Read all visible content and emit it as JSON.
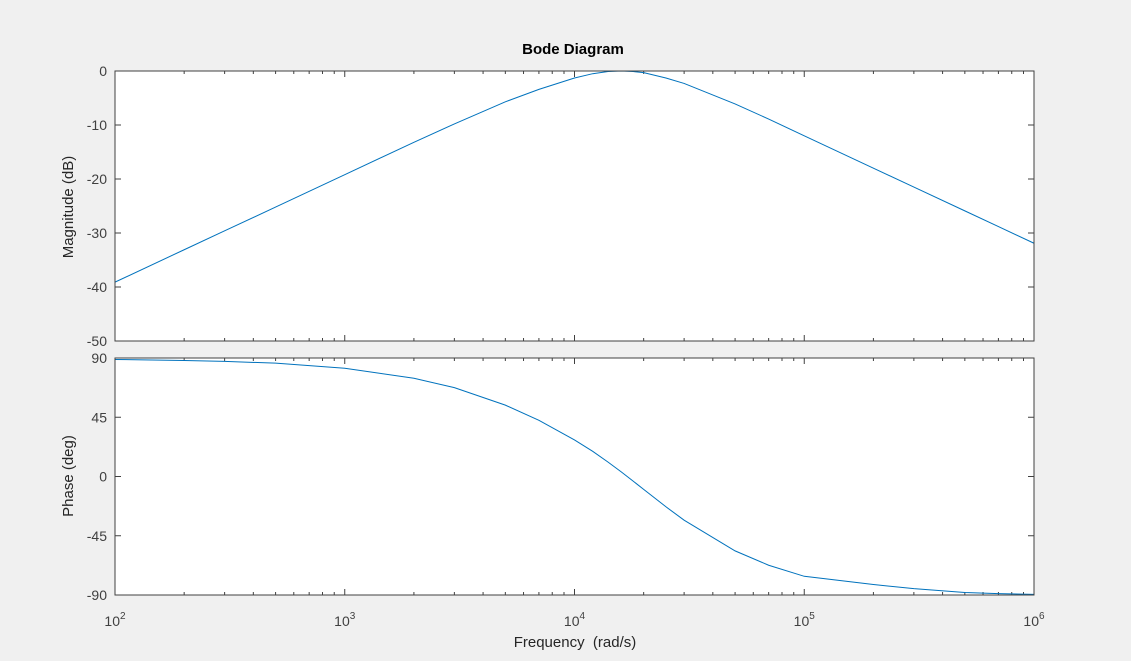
{
  "figure": {
    "background_color": "#f0f0f0",
    "axes_color": "#ffffff",
    "axis_line_color": "#404040",
    "tick_label_color": "#404040",
    "line_color": "#0072bd"
  },
  "chart_data": [
    {
      "type": "line",
      "title": "Bode Diagram",
      "ylabel": "Magnitude (dB)",
      "xlabel": "",
      "xscale": "log",
      "xlim": [
        100,
        1000000
      ],
      "ylim": [
        -50,
        0
      ],
      "yticks": [
        0,
        -10,
        -20,
        -30,
        -40,
        -50
      ],
      "grid": false,
      "series": [
        {
          "x": [
            100,
            200,
            300,
            500,
            1000,
            2000,
            3000,
            5000,
            7000,
            10000,
            12000,
            14000,
            16000,
            18000,
            20000,
            25000,
            30000,
            50000,
            70000,
            100000,
            200000,
            300000,
            500000,
            700000,
            1000000
          ],
          "values": [
            -39.1,
            -33.1,
            -29.6,
            -25.2,
            -19.2,
            -13.2,
            -9.8,
            -5.7,
            -3.4,
            -1.3,
            -0.5,
            -0.1,
            0,
            -0.1,
            -0.3,
            -1.3,
            -2.3,
            -6.1,
            -8.9,
            -12.0,
            -18.0,
            -21.5,
            -25.9,
            -28.8,
            -31.9
          ]
        }
      ]
    },
    {
      "type": "line",
      "xlabel": "Frequency  (rad/s)",
      "ylabel": "Phase (deg)",
      "xscale": "log",
      "xlim": [
        100,
        1000000
      ],
      "ylim": [
        -90,
        90
      ],
      "yticks": [
        90,
        45,
        0,
        -45,
        -90
      ],
      "xtick_labels": [
        "10",
        "10",
        "10",
        "10",
        "10"
      ],
      "xtick_exponents": [
        "2",
        "3",
        "4",
        "5",
        "6"
      ],
      "grid": false,
      "series": [
        {
          "x": [
            100,
            200,
            300,
            500,
            1000,
            2000,
            3000,
            5000,
            7000,
            10000,
            12000,
            14000,
            16000,
            18000,
            20000,
            25000,
            30000,
            50000,
            70000,
            100000,
            200000,
            300000,
            500000,
            700000,
            1000000
          ],
          "values": [
            88.9,
            88.1,
            87.4,
            86.1,
            82.2,
            74.6,
            67.5,
            54.2,
            42.7,
            27.8,
            19.1,
            10.9,
            3.4,
            -3.5,
            -9.8,
            -23.0,
            -33.2,
            -56.5,
            -67.4,
            -75.8,
            -82.0,
            -85.2,
            -88.1,
            -89.0,
            -89.5
          ]
        }
      ]
    }
  ]
}
